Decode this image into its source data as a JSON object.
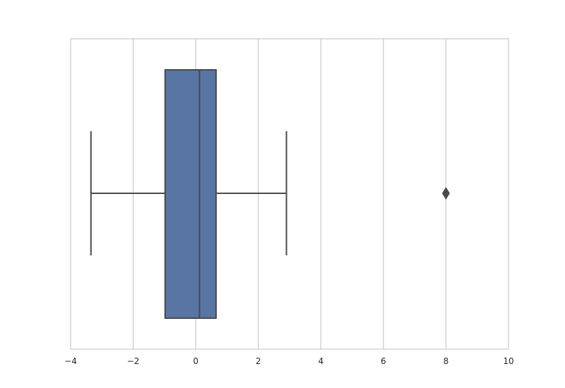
{
  "chart_data": {
    "type": "boxplot",
    "orientation": "horizontal",
    "title": "",
    "xlabel": "",
    "ylabel": "",
    "xlim": [
      -4,
      10
    ],
    "x_ticks": [
      -4,
      -2,
      0,
      2,
      4,
      6,
      8,
      10
    ],
    "x_tick_labels": [
      "−4",
      "−2",
      "0",
      "2",
      "4",
      "6",
      "8",
      "10"
    ],
    "grid": "vertical",
    "box": {
      "whisker_low": -3.35,
      "q1": -0.98,
      "median": 0.12,
      "q3": 0.65,
      "whisker_high": 2.9,
      "outliers": [
        8.0
      ]
    },
    "colors": {
      "box_fill": "#5875a4",
      "line": "#4a4a4a",
      "grid": "#cccccc",
      "spine": "#cccccc"
    }
  }
}
